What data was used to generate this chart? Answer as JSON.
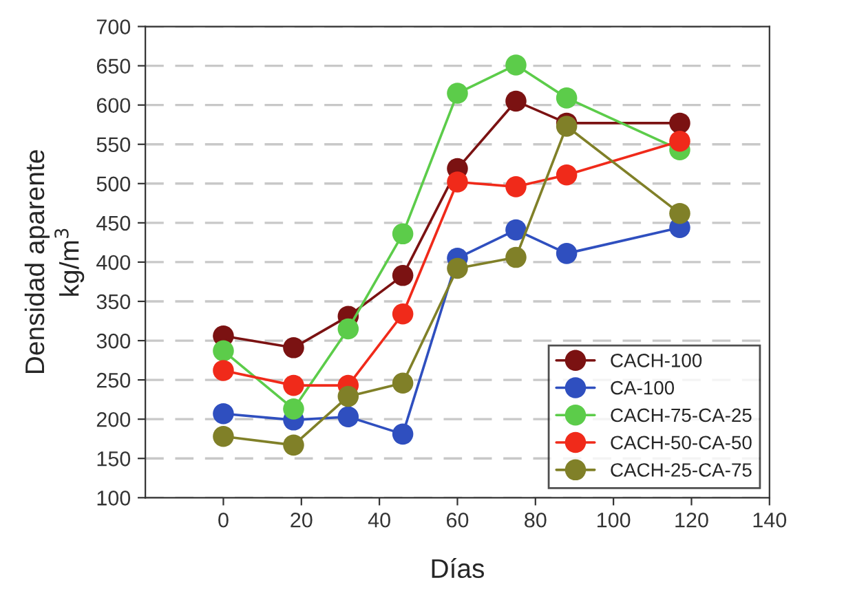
{
  "chart_data": {
    "type": "line",
    "xlabel": "Días",
    "ylabel": "Densidad aparente\nkg/m$^{3}$",
    "x": [
      0,
      18,
      32,
      46,
      60,
      75,
      88,
      117
    ],
    "xlim": [
      -20,
      140
    ],
    "xticks": [
      0,
      20,
      40,
      60,
      80,
      100,
      120,
      140
    ],
    "ylim": [
      100,
      700
    ],
    "yticks": [
      100,
      150,
      200,
      250,
      300,
      350,
      400,
      450,
      500,
      550,
      600,
      650,
      700
    ],
    "grid": "y",
    "legend": "bottom right",
    "marker": "circle",
    "line_style": "solid",
    "series": [
      {
        "name": "CACH-100",
        "color": "#7b1212",
        "values": [
          306,
          291,
          331,
          383,
          519,
          605,
          577,
          577
        ]
      },
      {
        "name": "CA-100",
        "color": "#2f4fbf",
        "values": [
          207,
          199,
          203,
          181,
          405,
          441,
          411,
          444
        ]
      },
      {
        "name": "CACH-75-CA-25",
        "color": "#5ccc4a",
        "values": [
          287,
          213,
          315,
          436,
          615,
          651,
          609,
          543
        ]
      },
      {
        "name": "CACH-50-CA-50",
        "color": "#f02a1a",
        "values": [
          262,
          243,
          243,
          334,
          502,
          496,
          511,
          554
        ]
      },
      {
        "name": "CACH-25-CA-75",
        "color": "#808028",
        "values": [
          178,
          167,
          229,
          246,
          392,
          406,
          573,
          462
        ]
      }
    ]
  }
}
